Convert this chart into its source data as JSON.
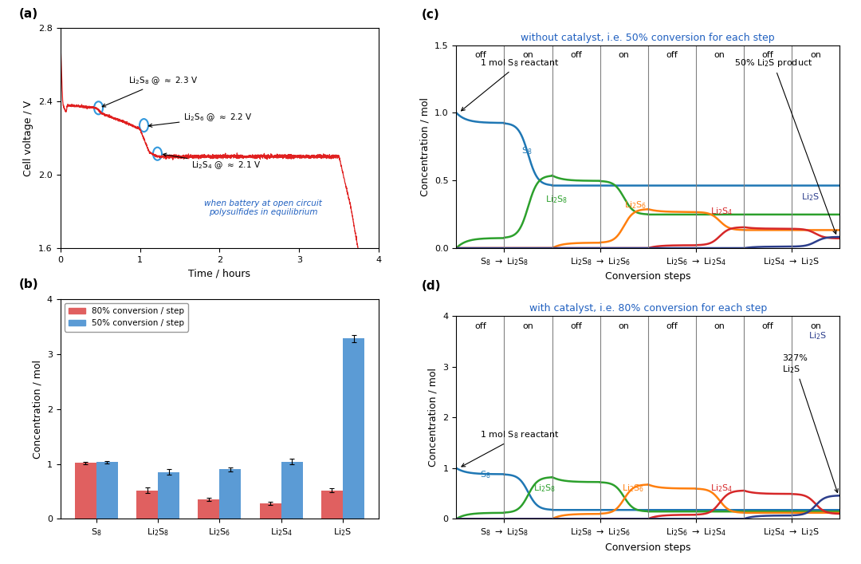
{
  "fig_width": 10.8,
  "fig_height": 7.07,
  "bg_color": "#ffffff",
  "panel_a": {
    "label": "(a)",
    "xlabel": "Time / hours",
    "ylabel": "Cell voltage / V",
    "xlim": [
      0,
      4
    ],
    "ylim": [
      1.6,
      2.8
    ],
    "xticks": [
      0,
      1,
      2,
      3,
      4
    ],
    "yticks": [
      1.6,
      2.0,
      2.4,
      2.8
    ],
    "line_color": "#e02020",
    "circle_points": [
      [
        0.48,
        2.36
      ],
      [
        1.05,
        2.27
      ],
      [
        1.22,
        2.12
      ]
    ],
    "note_color": "#2060c0"
  },
  "panel_b": {
    "label": "(b)",
    "ylabel": "Concentration / mol",
    "ylim": [
      0,
      4
    ],
    "yticks": [
      0,
      1,
      2,
      3,
      4
    ],
    "blue_values": [
      1.03,
      0.85,
      0.9,
      1.04,
      3.28
    ],
    "red_values": [
      1.02,
      0.52,
      0.36,
      0.28,
      0.52
    ],
    "blue_errors": [
      0.02,
      0.05,
      0.04,
      0.05,
      0.07
    ],
    "red_errors": [
      0.02,
      0.05,
      0.03,
      0.03,
      0.04
    ],
    "blue_color": "#5b9bd5",
    "red_color": "#e06060",
    "legend_blue": "50% conversion / step",
    "legend_red": "80% conversion / step"
  },
  "panel_c": {
    "label": "(c)",
    "title": "without catalyst, i.e. 50% conversion for each step",
    "title_color": "#2060c0",
    "xlabel": "Conversion steps",
    "ylabel": "Concentration / mol",
    "ylim": [
      0,
      1.5
    ],
    "yticks": [
      0.0,
      0.5,
      1.0,
      1.5
    ],
    "conversion": 0.5,
    "colors": {
      "S8": "#1f77b4",
      "Li2S8": "#2ca02c",
      "Li2S6": "#ff7f0e",
      "Li2S4": "#d62728",
      "Li2S": "#2c3e8c"
    }
  },
  "panel_d": {
    "label": "(d)",
    "title": "with catalyst, i.e. 80% conversion for each step",
    "title_color": "#2060c0",
    "xlabel": "Conversion steps",
    "ylabel": "Concentration / mol",
    "ylim": [
      0,
      4
    ],
    "yticks": [
      0,
      1,
      2,
      3,
      4
    ],
    "conversion": 0.8,
    "colors": {
      "S8": "#1f77b4",
      "Li2S8": "#2ca02c",
      "Li2S6": "#ff7f0e",
      "Li2S4": "#d62728",
      "Li2S": "#2c3e8c"
    }
  }
}
